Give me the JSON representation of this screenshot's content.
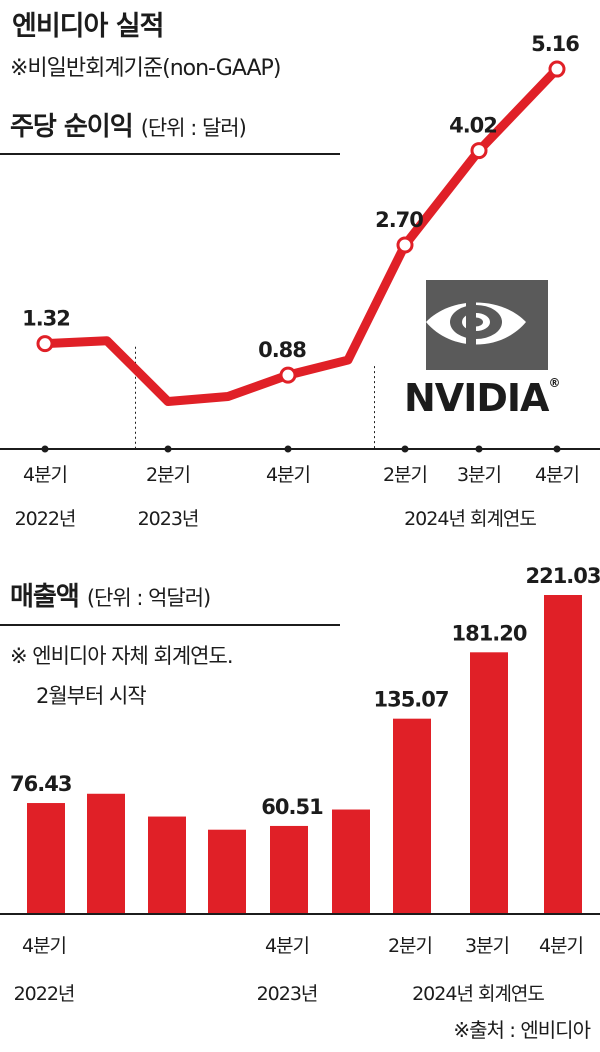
{
  "header": {
    "title": "엔비디아 실적",
    "subtitle": "※비일반회계기준(non-GAAP)"
  },
  "eps_section": {
    "title": "주당 순이익",
    "unit": "(단위 : 달러)"
  },
  "revenue_section": {
    "title": "매출액",
    "unit": "(단위 : 억달러)",
    "note_line1": "※ 엔비디아 자체 회계연도.",
    "note_line2": "2월부터 시작"
  },
  "logo": {
    "text": "NVIDIA",
    "registered": "®"
  },
  "source": "※출처 : 엔비디아",
  "colors": {
    "accent": "#e02027",
    "text": "#1c1c1c",
    "logo_gray": "#5a5a5a"
  },
  "chart_data": [
    {
      "type": "line",
      "title": "주당 순이익",
      "unit": "달러",
      "x": [
        "2022 Q4",
        "2023 Q1",
        "2023 Q2",
        "2023 Q3",
        "2023 Q4",
        "2024 Q1",
        "2024 Q2",
        "2024 Q3",
        "2024 Q4"
      ],
      "values": [
        1.32,
        1.36,
        0.51,
        0.58,
        0.88,
        1.09,
        2.7,
        4.02,
        5.16
      ],
      "labeled_points": [
        0,
        4,
        6,
        7,
        8
      ],
      "x_tick_labels": [
        {
          "index": 0,
          "quarter": "4분기",
          "year": "2022년"
        },
        {
          "index": 2,
          "quarter": "2분기",
          "year": "2023년"
        },
        {
          "index": 4,
          "quarter": "4분기",
          "year": ""
        },
        {
          "index": 6,
          "quarter": "2분기",
          "year": ""
        },
        {
          "index": 7,
          "quarter": "3분기",
          "year": "2024년 회계연도"
        },
        {
          "index": 8,
          "quarter": "4분기",
          "year": ""
        }
      ],
      "year_dividers_after_index": [
        1,
        5
      ],
      "ylim": [
        0,
        5.5
      ]
    },
    {
      "type": "bar",
      "title": "매출액",
      "unit": "억달러",
      "x": [
        "2022 Q4",
        "2023 Q1",
        "2023 Q2",
        "2023 Q3",
        "2023 Q4",
        "2024 Q1",
        "2024 Q2",
        "2024 Q3",
        "2024 Q4"
      ],
      "values": [
        76.43,
        82.88,
        67.04,
        57.9,
        60.51,
        71.92,
        135.07,
        181.2,
        221.03
      ],
      "labeled_points": [
        0,
        4,
        6,
        7,
        8
      ],
      "x_tick_labels": [
        {
          "index": 0,
          "quarter": "4분기",
          "year": "2022년"
        },
        {
          "index": 4,
          "quarter": "4분기",
          "year": "2023년"
        },
        {
          "index": 6,
          "quarter": "2분기",
          "year": ""
        },
        {
          "index": 7,
          "quarter": "3분기",
          "year": "2024년 회계연도"
        },
        {
          "index": 8,
          "quarter": "4분기",
          "year": ""
        }
      ],
      "ylim": [
        0,
        221.03
      ]
    }
  ]
}
